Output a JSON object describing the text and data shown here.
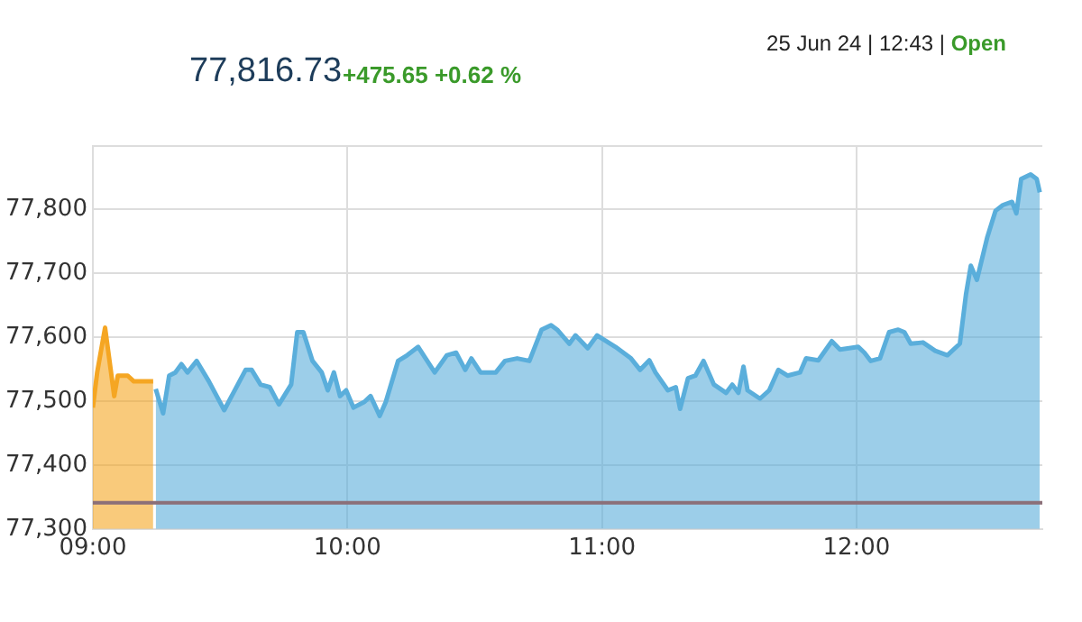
{
  "chart_data": {
    "type": "area",
    "title": "77,816.73",
    "subtitle": "+475.65 +0.62 %",
    "annotations": [
      "25 Jun 24 | 12:43 | Open"
    ],
    "xlim": [
      9,
      12.73
    ],
    "xticks": [
      {
        "value": 9,
        "label": "09:00"
      },
      {
        "value": 10,
        "label": "10:00"
      },
      {
        "value": 11,
        "label": "11:00"
      },
      {
        "value": 12,
        "label": "12:00"
      }
    ],
    "ylim": [
      77300,
      77900
    ],
    "yticks": [
      {
        "value": 77300,
        "label": "77,300"
      },
      {
        "value": 77400,
        "label": "77,400"
      },
      {
        "value": 77500,
        "label": "77,500"
      },
      {
        "value": 77600,
        "label": "77,600"
      },
      {
        "value": 77700,
        "label": "77,700"
      },
      {
        "value": 77800,
        "label": "77,800"
      },
      {
        "value": 77900,
        "label": null
      }
    ],
    "grid": true,
    "legend": false,
    "marker": "none",
    "ref_lines": [
      {
        "axis": "y",
        "value": 77341,
        "color": "#8b6f78"
      }
    ],
    "series": [
      {
        "color": "#f5a623",
        "x": [
          9.0,
          9.017,
          9.048,
          9.084,
          9.098,
          9.137,
          9.161,
          9.237
        ],
        "values": [
          77490,
          77545,
          77615,
          77508,
          77540,
          77540,
          77531,
          77531
        ]
      },
      {
        "color": "#5aaedb",
        "x": [
          9.247,
          9.276,
          9.3,
          9.324,
          9.348,
          9.372,
          9.408,
          9.456,
          9.516,
          9.552,
          9.6,
          9.624,
          9.659,
          9.695,
          9.731,
          9.779,
          9.803,
          9.827,
          9.863,
          9.899,
          9.923,
          9.947,
          9.971,
          9.995,
          10.024,
          10.067,
          10.091,
          10.127,
          10.151,
          10.199,
          10.235,
          10.278,
          10.343,
          10.391,
          10.427,
          10.463,
          10.487,
          10.523,
          10.583,
          10.619,
          10.667,
          10.715,
          10.763,
          10.8,
          10.824,
          10.872,
          10.896,
          10.944,
          10.981,
          11.053,
          11.114,
          11.15,
          11.186,
          11.21,
          11.259,
          11.29,
          11.307,
          11.338,
          11.367,
          11.399,
          11.44,
          11.488,
          11.512,
          11.536,
          11.556,
          11.572,
          11.621,
          11.657,
          11.693,
          11.729,
          11.778,
          11.802,
          11.85,
          11.903,
          11.935,
          12.007,
          12.031,
          12.056,
          12.092,
          12.128,
          12.164,
          12.188,
          12.213,
          12.261,
          12.309,
          12.357,
          12.406,
          12.43,
          12.449,
          12.473,
          12.514,
          12.546,
          12.575,
          12.611,
          12.628,
          12.647,
          12.684,
          12.708,
          12.72
        ],
        "values": [
          77519,
          77481,
          77540,
          77545,
          77558,
          77545,
          77563,
          77531,
          77486,
          77513,
          77549,
          77549,
          77526,
          77522,
          77495,
          77526,
          77608,
          77608,
          77563,
          77545,
          77517,
          77545,
          77508,
          77517,
          77490,
          77499,
          77508,
          77477,
          77499,
          77563,
          77572,
          77585,
          77545,
          77572,
          77576,
          77549,
          77567,
          77545,
          77545,
          77563,
          77567,
          77563,
          77612,
          77619,
          77612,
          77590,
          77603,
          77583,
          77603,
          77585,
          77567,
          77549,
          77564,
          77545,
          77517,
          77522,
          77488,
          77536,
          77540,
          77563,
          77526,
          77513,
          77526,
          77513,
          77554,
          77517,
          77504,
          77517,
          77549,
          77540,
          77545,
          77567,
          77564,
          77594,
          77581,
          77585,
          77576,
          77563,
          77567,
          77608,
          77612,
          77608,
          77590,
          77592,
          77579,
          77572,
          77590,
          77667,
          77712,
          77690,
          77757,
          77798,
          77807,
          77812,
          77794,
          77848,
          77855,
          77848,
          77827
        ]
      }
    ]
  }
}
